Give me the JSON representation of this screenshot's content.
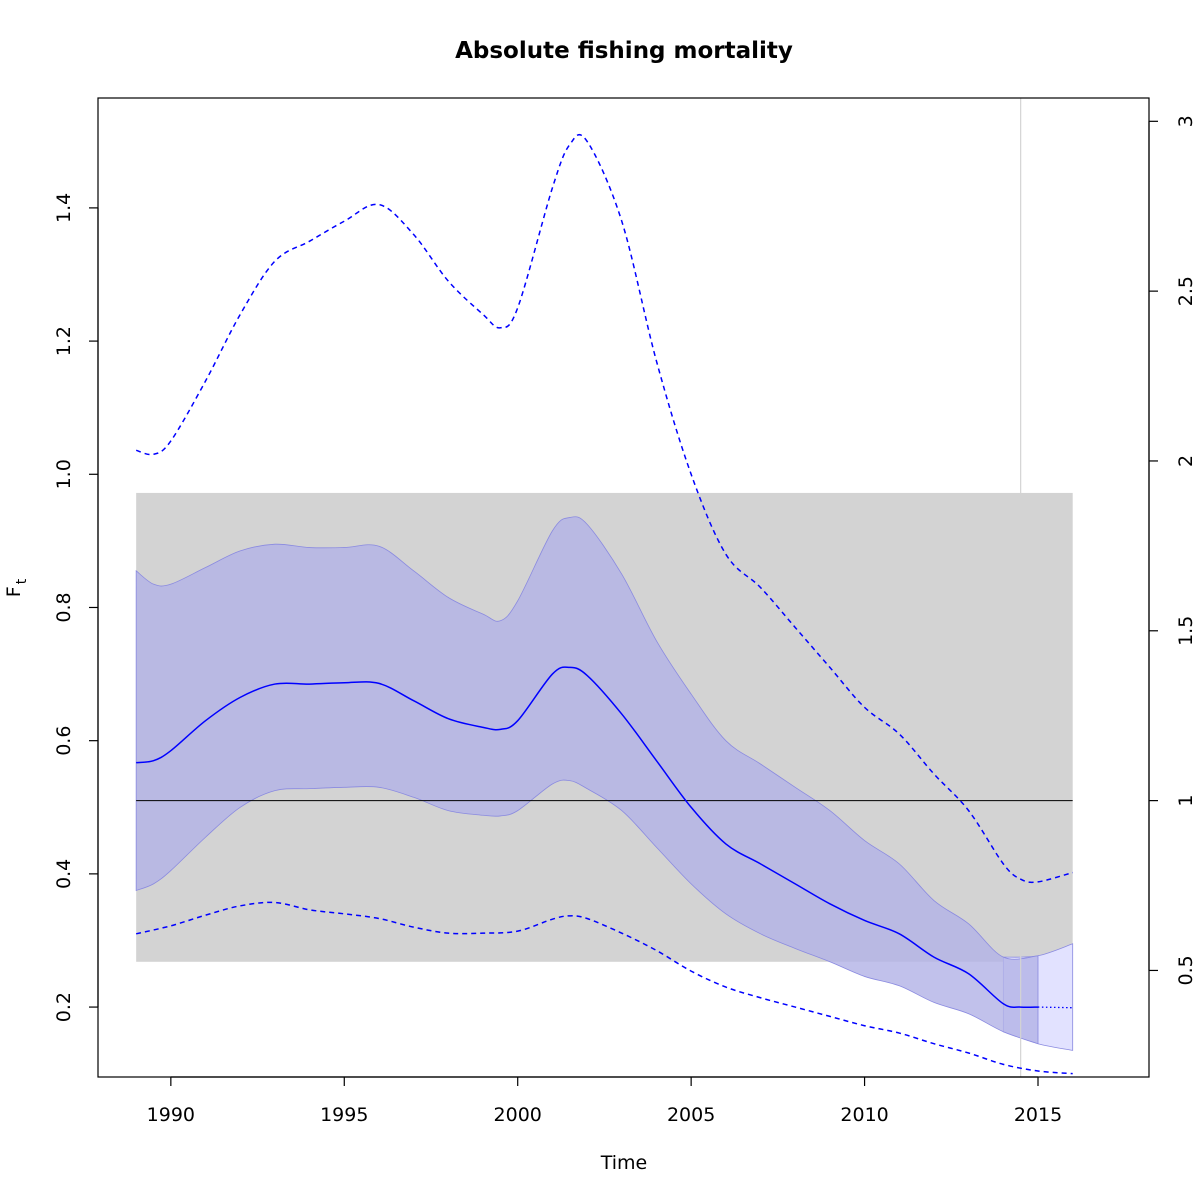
{
  "chart_data": {
    "type": "line",
    "title": "Absolute fishing mortality",
    "xlabel": "Time",
    "ylabel_main": "F",
    "ylabel_sub": "t",
    "xlim": [
      1987.9,
      2018.2
    ],
    "ylim": [
      0.095,
      1.565
    ],
    "right_axis_ratio": 0.51,
    "x_ticks": [
      1990,
      1995,
      2000,
      2005,
      2010,
      2015
    ],
    "x_tick_labels": [
      "1990",
      "1995",
      "2000",
      "2005",
      "2010",
      "2015"
    ],
    "y_ticks": [
      0.2,
      0.4,
      0.6,
      0.8,
      1.0,
      1.2,
      1.4
    ],
    "y_tick_labels": [
      "0.2",
      "0.4",
      "0.6",
      "0.8",
      "1.0",
      "1.2",
      "1.4"
    ],
    "y2_ticks": [
      0.5,
      1.0,
      1.5,
      2.0,
      2.5,
      3.0
    ],
    "y2_tick_labels": [
      "0.5",
      "1",
      "1.5",
      "2",
      "2.5",
      "3"
    ],
    "reference_line": 0.51,
    "reference_band": {
      "x": [
        1989,
        2016
      ],
      "y": [
        0.268,
        0.972
      ]
    },
    "vertical_line_x": 2014.5,
    "colors": {
      "series": "#0000ff",
      "ci_fill": "#b3b3e6",
      "ci_stroke": "#8a8ae0",
      "forecast_fill": "#e2e2ff",
      "band": "#d3d3d3",
      "vertical_line": "#d3d3d3",
      "reference": "#000000"
    },
    "series": [
      {
        "role": "estimate",
        "x": [
          1989,
          1989.5,
          1990,
          1991,
          1992,
          1993,
          1994,
          1995,
          1996,
          1997,
          1998,
          1999,
          1999.5,
          2000,
          2001,
          2001.5,
          2002,
          2003,
          2004,
          2005,
          2006,
          2007,
          2008,
          2009,
          2010,
          2011,
          2012,
          2013,
          2014,
          2014.5,
          2015
        ],
        "y": [
          0.567,
          0.57,
          0.585,
          0.63,
          0.665,
          0.685,
          0.685,
          0.687,
          0.686,
          0.66,
          0.633,
          0.62,
          0.617,
          0.63,
          0.7,
          0.71,
          0.698,
          0.64,
          0.57,
          0.5,
          0.445,
          0.415,
          0.385,
          0.355,
          0.33,
          0.31,
          0.275,
          0.25,
          0.205,
          0.2,
          0.2
        ]
      },
      {
        "role": "forecast",
        "x": [
          2015,
          2016
        ],
        "y": [
          0.2,
          0.199
        ]
      },
      {
        "role": "ci_upper",
        "x": [
          1989,
          1989.5,
          1990,
          1991,
          1992,
          1993,
          1994,
          1995,
          1996,
          1997,
          1998,
          1999,
          1999.5,
          2000,
          2001,
          2001.5,
          2002,
          2003,
          2004,
          2005,
          2006,
          2007,
          2008,
          2009,
          2010,
          2011,
          2012,
          2013,
          2014,
          2015,
          2016
        ],
        "y": [
          0.855,
          0.835,
          0.835,
          0.86,
          0.885,
          0.895,
          0.89,
          0.89,
          0.892,
          0.855,
          0.815,
          0.79,
          0.78,
          0.81,
          0.915,
          0.935,
          0.925,
          0.85,
          0.75,
          0.67,
          0.6,
          0.565,
          0.53,
          0.495,
          0.45,
          0.415,
          0.36,
          0.325,
          0.275,
          0.277,
          0.295
        ]
      },
      {
        "role": "ci_lower",
        "x": [
          1989,
          1989.5,
          1990,
          1991,
          1992,
          1993,
          1994,
          1995,
          1996,
          1997,
          1998,
          1999,
          1999.5,
          2000,
          2001,
          2001.5,
          2002,
          2003,
          2004,
          2005,
          2006,
          2007,
          2008,
          2009,
          2010,
          2011,
          2012,
          2013,
          2014,
          2015,
          2016
        ],
        "y": [
          0.375,
          0.385,
          0.405,
          0.455,
          0.5,
          0.525,
          0.528,
          0.53,
          0.53,
          0.515,
          0.495,
          0.488,
          0.487,
          0.495,
          0.535,
          0.54,
          0.528,
          0.495,
          0.44,
          0.385,
          0.34,
          0.31,
          0.288,
          0.268,
          0.246,
          0.232,
          0.207,
          0.19,
          0.163,
          0.145,
          0.135
        ]
      },
      {
        "role": "outer_upper",
        "x": [
          1989,
          1989.5,
          1990,
          1991,
          1992,
          1993,
          1994,
          1995,
          1996,
          1997,
          1998,
          1999,
          1999.5,
          2000,
          2001,
          2001.5,
          2002,
          2003,
          2004,
          2005,
          2006,
          2007,
          2008,
          2009,
          2010,
          2011,
          2012,
          2013,
          2014,
          2014.5,
          2015,
          2016
        ],
        "y": [
          1.036,
          1.03,
          1.05,
          1.14,
          1.24,
          1.32,
          1.35,
          1.38,
          1.405,
          1.36,
          1.29,
          1.24,
          1.22,
          1.25,
          1.43,
          1.495,
          1.5,
          1.38,
          1.17,
          1.0,
          0.88,
          0.83,
          0.77,
          0.71,
          0.65,
          0.61,
          0.55,
          0.495,
          0.415,
          0.392,
          0.388,
          0.402
        ]
      },
      {
        "role": "outer_lower",
        "x": [
          1989,
          1990,
          1991,
          1992,
          1993,
          1994,
          1995,
          1996,
          1997,
          1998,
          1999,
          2000,
          2001,
          2001.5,
          2002,
          2003,
          2004,
          2005,
          2006,
          2007,
          2008,
          2009,
          2010,
          2011,
          2012,
          2013,
          2014,
          2015,
          2016
        ],
        "y": [
          0.31,
          0.322,
          0.338,
          0.352,
          0.357,
          0.346,
          0.34,
          0.333,
          0.32,
          0.311,
          0.311,
          0.314,
          0.332,
          0.337,
          0.333,
          0.311,
          0.285,
          0.254,
          0.23,
          0.214,
          0.2,
          0.186,
          0.172,
          0.161,
          0.145,
          0.131,
          0.114,
          0.104,
          0.1
        ]
      }
    ]
  }
}
